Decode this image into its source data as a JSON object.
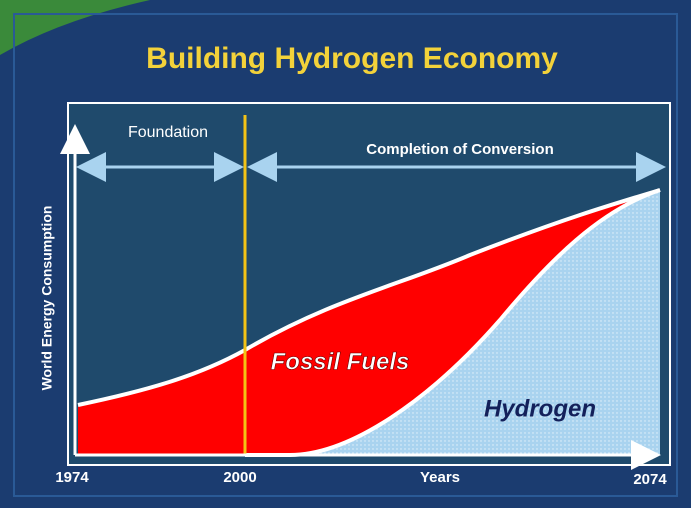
{
  "title": "Building Hydrogen Economy",
  "y_axis_label": "World Energy Consumption",
  "x_axis_label": "Years",
  "x_labels": [
    "1974",
    "2000",
    "2074"
  ],
  "phases": [
    "Foundation",
    "Completion of Conversion"
  ],
  "areas": [
    "Fossil Fuels",
    "Hydrogen"
  ]
}
